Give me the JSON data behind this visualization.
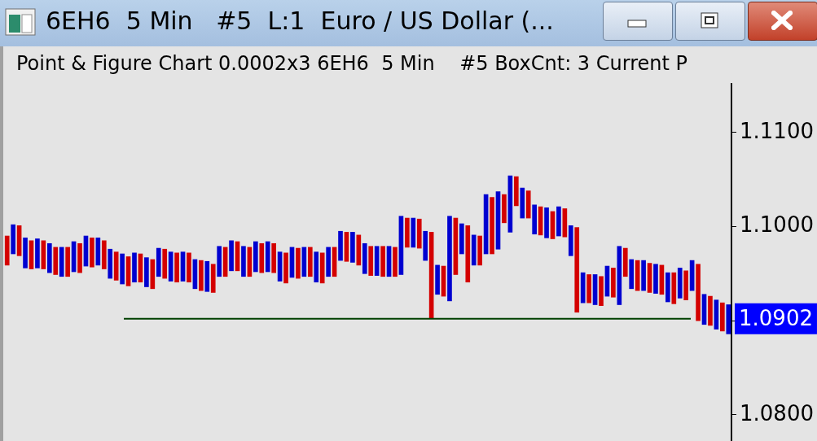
{
  "chart_data": {
    "type": "bar",
    "title": "6EH6  5 Min   #5  L:1  Euro / US Dollar (...",
    "subtitle": "Point & Figure Chart 0.0002x3 6EH6  5 Min    #5 BoxCnt: 3 Current P",
    "categories": [
      null,
      null,
      null,
      null,
      null,
      null,
      null,
      null,
      null,
      null,
      null,
      null,
      null,
      null,
      null,
      null,
      null,
      null,
      null,
      null,
      null,
      null,
      null,
      null,
      null,
      null,
      null,
      null,
      null,
      null,
      null,
      null,
      null,
      null,
      null,
      null,
      null,
      null,
      null,
      null,
      null,
      null,
      null,
      null,
      null,
      null,
      null,
      null,
      null,
      null,
      null,
      null,
      null,
      null,
      null,
      null,
      null,
      null,
      null,
      null,
      null,
      null,
      null,
      null,
      null,
      null,
      null,
      null,
      null,
      null,
      null,
      null,
      null,
      null,
      null,
      null,
      null,
      null,
      null,
      null,
      null,
      null,
      null,
      null,
      null,
      null,
      null,
      null,
      null,
      null,
      null,
      null,
      null,
      null,
      null,
      null,
      null,
      null,
      null,
      null,
      null,
      null,
      null,
      null,
      null,
      null,
      null,
      null,
      null,
      null,
      null,
      null,
      null,
      null,
      null,
      null,
      null,
      null,
      null,
      null
    ],
    "base": [
      1.0959,
      1.0971,
      1.0969,
      1.0956,
      1.0955,
      1.0956,
      1.0955,
      1.0951,
      1.0949,
      1.0947,
      1.0947,
      1.0952,
      1.0951,
      1.0958,
      1.0957,
      1.0959,
      1.0955,
      1.0945,
      1.0943,
      1.0939,
      1.0937,
      1.0941,
      1.0941,
      1.0936,
      1.0934,
      1.0947,
      1.0945,
      1.0942,
      1.0941,
      1.0942,
      1.0941,
      1.0934,
      1.0932,
      1.0931,
      1.093,
      1.0947,
      1.0947,
      1.0953,
      1.0953,
      1.0947,
      1.0947,
      1.0952,
      1.0951,
      1.0952,
      1.0951,
      1.0942,
      1.094,
      1.0946,
      1.0945,
      1.0947,
      1.0947,
      1.0941,
      1.094,
      1.0947,
      1.0947,
      1.0964,
      1.0963,
      1.0962,
      1.0959,
      1.095,
      1.0948,
      1.0948,
      1.0947,
      1.0947,
      1.0947,
      1.0949,
      1.0978,
      1.0978,
      1.0977,
      1.0964,
      1.0903,
      1.0928,
      1.0926,
      1.0921,
      1.0949,
      1.0971,
      1.0941,
      1.0959,
      1.0959,
      1.0971,
      1.0971,
      1.0976,
      1.1004,
      1.0994,
      1.1022,
      1.1009,
      1.1009,
      1.0992,
      1.0991,
      1.0988,
      1.0987,
      1.099,
      1.0989,
      1.0969,
      1.0909,
      1.0919,
      1.0919,
      1.0917,
      1.0916,
      1.0926,
      1.0925,
      1.0917,
      1.0947,
      1.0934,
      1.0932,
      1.0932,
      1.093,
      1.0929,
      1.0928,
      1.092,
      1.0918,
      1.0924,
      1.0922,
      1.0932,
      1.09,
      1.0896,
      1.0895,
      1.0891,
      1.0889,
      1.0886
    ],
    "values": [
      0.0031,
      0.0031,
      0.0032,
      0.0032,
      0.003,
      0.0031,
      0.003,
      0.0031,
      0.0029,
      0.0031,
      0.0031,
      0.0032,
      0.0031,
      0.0032,
      0.0031,
      0.0029,
      0.003,
      0.0031,
      0.003,
      0.0032,
      0.0031,
      0.0031,
      0.003,
      0.0031,
      0.0031,
      0.003,
      0.0031,
      0.0031,
      0.0031,
      0.0031,
      0.0031,
      0.0031,
      0.0032,
      0.0032,
      0.003,
      0.0032,
      0.0031,
      0.0032,
      0.0031,
      0.0032,
      0.0031,
      0.0032,
      0.0031,
      0.0032,
      0.0031,
      0.0031,
      0.0032,
      0.0032,
      0.0032,
      0.0031,
      0.0031,
      0.0032,
      0.0032,
      0.0031,
      0.0031,
      0.0031,
      0.0031,
      0.0032,
      0.0032,
      0.0032,
      0.0031,
      0.0031,
      0.0032,
      0.0032,
      0.0031,
      0.0062,
      0.0031,
      0.0031,
      0.0031,
      0.0031,
      0.0091,
      0.0031,
      0.0032,
      0.009,
      0.006,
      0.0032,
      0.006,
      0.0032,
      0.0031,
      0.0063,
      0.006,
      0.0061,
      0.003,
      0.006,
      0.0031,
      0.0032,
      0.0029,
      0.0031,
      0.003,
      0.0032,
      0.0029,
      0.0031,
      0.003,
      0.0032,
      0.009,
      0.0032,
      0.003,
      0.0032,
      0.0031,
      0.0032,
      0.0031,
      0.0062,
      0.003,
      0.0031,
      0.0032,
      0.0032,
      0.0031,
      0.0031,
      0.0031,
      0.0031,
      0.0033,
      0.0032,
      0.0031,
      0.0032,
      0.006,
      0.0032,
      0.0031,
      0.0031,
      0.003,
      0.0031
    ],
    "colors": [
      "#d40000",
      "#0000d0",
      "#d40000",
      "#0000d0",
      "#d40000",
      "#0000d0",
      "#d40000",
      "#0000d0",
      "#d40000",
      "#0000d0",
      "#d40000",
      "#0000d0",
      "#d40000",
      "#0000d0",
      "#d40000",
      "#0000d0",
      "#d40000",
      "#0000d0",
      "#d40000",
      "#0000d0",
      "#d40000",
      "#0000d0",
      "#d40000",
      "#0000d0",
      "#d40000",
      "#0000d0",
      "#d40000",
      "#0000d0",
      "#d40000",
      "#0000d0",
      "#d40000",
      "#0000d0",
      "#d40000",
      "#0000d0",
      "#d40000",
      "#0000d0",
      "#d40000",
      "#0000d0",
      "#d40000",
      "#0000d0",
      "#d40000",
      "#0000d0",
      "#d40000",
      "#0000d0",
      "#d40000",
      "#0000d0",
      "#d40000",
      "#0000d0",
      "#d40000",
      "#0000d0",
      "#d40000",
      "#0000d0",
      "#d40000",
      "#0000d0",
      "#d40000",
      "#0000d0",
      "#d40000",
      "#0000d0",
      "#d40000",
      "#0000d0",
      "#d40000",
      "#0000d0",
      "#d40000",
      "#0000d0",
      "#d40000",
      "#0000d0",
      "#d40000",
      "#0000d0",
      "#d40000",
      "#0000d0",
      "#d40000",
      "#0000d0",
      "#d40000",
      "#0000d0",
      "#d40000",
      "#0000d0",
      "#d40000",
      "#0000d0",
      "#d40000",
      "#0000d0",
      "#d40000",
      "#0000d0",
      "#d40000",
      "#0000d0",
      "#d40000",
      "#0000d0",
      "#d40000",
      "#0000d0",
      "#d40000",
      "#0000d0",
      "#d40000",
      "#0000d0",
      "#d40000",
      "#0000d0",
      "#d40000",
      "#0000d0",
      "#d40000",
      "#0000d0",
      "#d40000",
      "#0000d0",
      "#d40000",
      "#0000d0",
      "#d40000",
      "#0000d0",
      "#d40000",
      "#0000d0",
      "#d40000",
      "#0000d0",
      "#d40000",
      "#0000d0",
      "#d40000",
      "#0000d0",
      "#d40000",
      "#0000d0",
      "#d40000",
      "#0000d0",
      "#d40000",
      "#0000d0",
      "#d40000",
      "#0000d0"
    ],
    "ylim": [
      1.0771,
      1.1152
    ],
    "yticks": [
      {
        "value": 1.08,
        "label": "1.0800"
      },
      {
        "value": 1.09,
        "label": null
      },
      {
        "value": 1.1,
        "label": "1.1000"
      },
      {
        "value": 1.11,
        "label": "1.1100"
      }
    ],
    "ref_lines": [
      {
        "axis": "y",
        "value": 1.0902,
        "label": "1.0902",
        "color": "#004000"
      }
    ],
    "grid": false,
    "legend": false,
    "tick_labels": "y"
  }
}
